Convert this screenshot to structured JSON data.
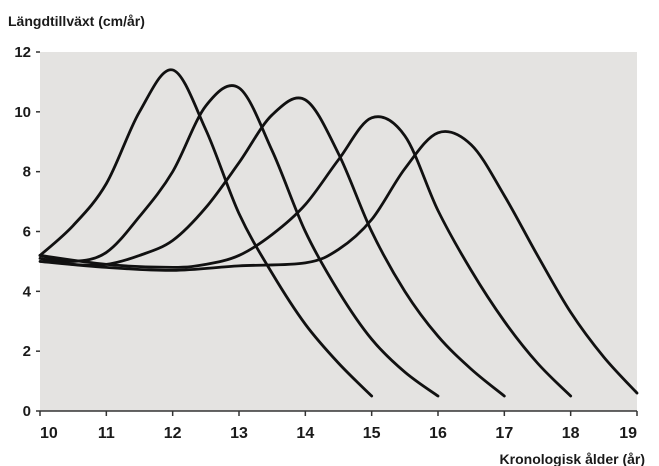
{
  "chart_data": {
    "type": "line",
    "title": "",
    "ylabel": "Längdtillväxt (cm/år)",
    "xlabel": "Kronologisk ålder (år)",
    "xlim": [
      10,
      19
    ],
    "ylim": [
      0,
      12
    ],
    "x_ticks": [
      10,
      11,
      12,
      13,
      14,
      15,
      16,
      17,
      18,
      19
    ],
    "y_ticks": [
      0,
      2,
      4,
      6,
      8,
      10,
      12
    ],
    "grid": false,
    "legend": "none",
    "plot_background": "#e4e3e1",
    "line_color": "#111111",
    "series": [
      {
        "x": [
          10,
          10.5,
          11,
          11.5,
          12,
          12.5,
          13,
          13.5,
          14,
          14.5,
          15
        ],
        "y": [
          5.2,
          6.2,
          7.6,
          10.0,
          11.4,
          9.4,
          6.6,
          4.6,
          2.9,
          1.6,
          0.5
        ]
      },
      {
        "x": [
          10,
          10.5,
          11,
          11.5,
          12,
          12.5,
          13,
          13.5,
          14,
          14.5,
          15,
          15.5,
          16
        ],
        "y": [
          5.2,
          5.0,
          5.3,
          6.5,
          8.0,
          10.2,
          10.8,
          8.7,
          6.0,
          4.0,
          2.4,
          1.3,
          0.5
        ]
      },
      {
        "x": [
          10,
          10.5,
          11,
          11.5,
          12,
          12.5,
          13,
          13.5,
          14,
          14.5,
          15,
          15.5,
          16,
          16.5,
          17
        ],
        "y": [
          5.1,
          4.9,
          4.9,
          5.2,
          5.7,
          6.8,
          8.3,
          9.9,
          10.4,
          8.6,
          6.0,
          4.0,
          2.5,
          1.4,
          0.5
        ]
      },
      {
        "x": [
          10,
          11,
          12,
          12.5,
          13,
          13.5,
          14,
          14.5,
          15,
          15.5,
          16,
          16.5,
          17,
          17.5,
          18
        ],
        "y": [
          5.2,
          4.9,
          4.8,
          4.9,
          5.2,
          5.9,
          6.9,
          8.4,
          9.8,
          9.2,
          6.7,
          4.7,
          3.0,
          1.6,
          0.5
        ]
      },
      {
        "x": [
          10,
          11,
          12,
          13,
          14,
          14.5,
          15,
          15.5,
          16,
          16.5,
          17,
          17.5,
          18,
          18.5,
          19
        ],
        "y": [
          5.0,
          4.8,
          4.7,
          4.85,
          4.95,
          5.4,
          6.4,
          8.1,
          9.3,
          8.9,
          7.2,
          5.2,
          3.3,
          1.8,
          0.6
        ]
      }
    ]
  }
}
